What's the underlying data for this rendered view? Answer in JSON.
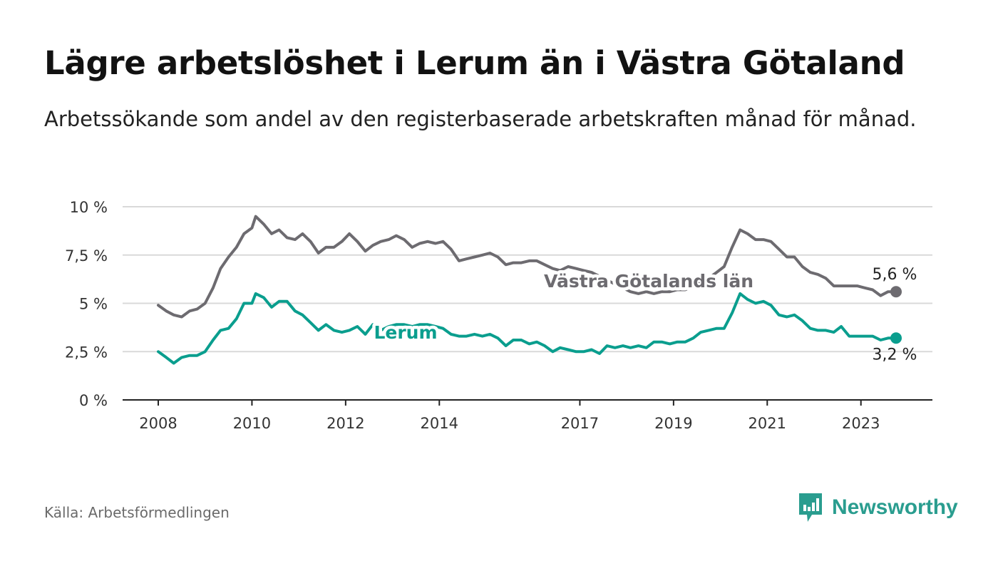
{
  "header": {
    "title": "Lägre arbetslöshet i Lerum än i Västra Götaland",
    "subtitle": "Arbetssökande som andel av den registerbaserade arbetskraften månad för månad."
  },
  "footer": {
    "source": "Källa: Arbetsförmedlingen",
    "brand": "Newsworthy"
  },
  "colors": {
    "lerum": "#0a9e8e",
    "vg": "#6d6b70",
    "grid": "#d9d9d9",
    "brand": "#2a9d8f"
  },
  "chart_data": {
    "type": "line",
    "title": "Lägre arbetslöshet i Lerum än i Västra Götaland",
    "xlabel": "",
    "ylabel": "",
    "xlim": [
      2008,
      2024
    ],
    "ylim": [
      0,
      10
    ],
    "y_ticks": [
      0,
      2.5,
      5,
      7.5,
      10
    ],
    "y_tick_labels": [
      "0 %",
      "2,5 %",
      "5 %",
      "7,5 %",
      "10 %"
    ],
    "x_ticks": [
      2008,
      2010,
      2012,
      2014,
      2017,
      2019,
      2021,
      2023
    ],
    "x_tick_labels": [
      "2008",
      "2010",
      "2012",
      "2014",
      "2017",
      "2019",
      "2021",
      "2023"
    ],
    "grid": true,
    "series": [
      {
        "name": "Västra Götalands län",
        "color": "#6d6b70",
        "end_label": "5,6 %",
        "points": [
          [
            2008.0,
            4.9
          ],
          [
            2008.17,
            4.6
          ],
          [
            2008.33,
            4.4
          ],
          [
            2008.5,
            4.3
          ],
          [
            2008.67,
            4.6
          ],
          [
            2008.83,
            4.7
          ],
          [
            2009.0,
            5.0
          ],
          [
            2009.17,
            5.8
          ],
          [
            2009.33,
            6.8
          ],
          [
            2009.5,
            7.4
          ],
          [
            2009.67,
            7.9
          ],
          [
            2009.83,
            8.6
          ],
          [
            2010.0,
            8.9
          ],
          [
            2010.08,
            9.5
          ],
          [
            2010.25,
            9.1
          ],
          [
            2010.42,
            8.6
          ],
          [
            2010.58,
            8.8
          ],
          [
            2010.75,
            8.4
          ],
          [
            2010.92,
            8.3
          ],
          [
            2011.08,
            8.6
          ],
          [
            2011.25,
            8.2
          ],
          [
            2011.42,
            7.6
          ],
          [
            2011.58,
            7.9
          ],
          [
            2011.75,
            7.9
          ],
          [
            2011.92,
            8.2
          ],
          [
            2012.08,
            8.6
          ],
          [
            2012.25,
            8.2
          ],
          [
            2012.42,
            7.7
          ],
          [
            2012.58,
            8.0
          ],
          [
            2012.75,
            8.2
          ],
          [
            2012.92,
            8.3
          ],
          [
            2013.08,
            8.5
          ],
          [
            2013.25,
            8.3
          ],
          [
            2013.42,
            7.9
          ],
          [
            2013.58,
            8.1
          ],
          [
            2013.75,
            8.2
          ],
          [
            2013.92,
            8.1
          ],
          [
            2014.08,
            8.2
          ],
          [
            2014.25,
            7.8
          ],
          [
            2014.42,
            7.2
          ],
          [
            2014.58,
            7.3
          ],
          [
            2014.75,
            7.4
          ],
          [
            2014.92,
            7.5
          ],
          [
            2015.08,
            7.6
          ],
          [
            2015.25,
            7.4
          ],
          [
            2015.42,
            7.0
          ],
          [
            2015.58,
            7.1
          ],
          [
            2015.75,
            7.1
          ],
          [
            2015.92,
            7.2
          ],
          [
            2016.08,
            7.2
          ],
          [
            2016.25,
            7.0
          ],
          [
            2016.42,
            6.8
          ],
          [
            2016.58,
            6.7
          ],
          [
            2016.75,
            6.9
          ],
          [
            2016.92,
            6.8
          ],
          [
            2017.08,
            6.7
          ],
          [
            2017.25,
            6.6
          ],
          [
            2017.42,
            6.4
          ],
          [
            2017.58,
            6.2
          ],
          [
            2017.75,
            6.0
          ],
          [
            2017.92,
            5.8
          ],
          [
            2018.08,
            5.6
          ],
          [
            2018.25,
            5.5
          ],
          [
            2018.42,
            5.6
          ],
          [
            2018.58,
            5.5
          ],
          [
            2018.75,
            5.6
          ],
          [
            2018.92,
            5.6
          ],
          [
            2019.08,
            5.7
          ],
          [
            2019.25,
            5.7
          ],
          [
            2019.42,
            5.9
          ],
          [
            2019.58,
            6.1
          ],
          [
            2019.75,
            6.3
          ],
          [
            2019.92,
            6.6
          ],
          [
            2020.08,
            6.9
          ],
          [
            2020.25,
            7.9
          ],
          [
            2020.42,
            8.8
          ],
          [
            2020.58,
            8.6
          ],
          [
            2020.75,
            8.3
          ],
          [
            2020.92,
            8.3
          ],
          [
            2021.08,
            8.2
          ],
          [
            2021.25,
            7.8
          ],
          [
            2021.42,
            7.4
          ],
          [
            2021.58,
            7.4
          ],
          [
            2021.75,
            6.9
          ],
          [
            2021.92,
            6.6
          ],
          [
            2022.08,
            6.5
          ],
          [
            2022.25,
            6.3
          ],
          [
            2022.42,
            5.9
          ],
          [
            2022.58,
            5.9
          ],
          [
            2022.75,
            5.9
          ],
          [
            2022.92,
            5.9
          ],
          [
            2023.08,
            5.8
          ],
          [
            2023.25,
            5.7
          ],
          [
            2023.42,
            5.4
          ],
          [
            2023.58,
            5.6
          ],
          [
            2023.75,
            5.6
          ]
        ]
      },
      {
        "name": "Lerum",
        "color": "#0a9e8e",
        "end_label": "3,2 %",
        "points": [
          [
            2008.0,
            2.5
          ],
          [
            2008.17,
            2.2
          ],
          [
            2008.33,
            1.9
          ],
          [
            2008.5,
            2.2
          ],
          [
            2008.67,
            2.3
          ],
          [
            2008.83,
            2.3
          ],
          [
            2009.0,
            2.5
          ],
          [
            2009.17,
            3.1
          ],
          [
            2009.33,
            3.6
          ],
          [
            2009.5,
            3.7
          ],
          [
            2009.67,
            4.2
          ],
          [
            2009.83,
            5.0
          ],
          [
            2010.0,
            5.0
          ],
          [
            2010.08,
            5.5
          ],
          [
            2010.25,
            5.3
          ],
          [
            2010.42,
            4.8
          ],
          [
            2010.58,
            5.1
          ],
          [
            2010.75,
            5.1
          ],
          [
            2010.92,
            4.6
          ],
          [
            2011.08,
            4.4
          ],
          [
            2011.25,
            4.0
          ],
          [
            2011.42,
            3.6
          ],
          [
            2011.58,
            3.9
          ],
          [
            2011.75,
            3.6
          ],
          [
            2011.92,
            3.5
          ],
          [
            2012.08,
            3.6
          ],
          [
            2012.25,
            3.8
          ],
          [
            2012.42,
            3.4
          ],
          [
            2012.58,
            3.9
          ],
          [
            2012.75,
            3.6
          ],
          [
            2012.92,
            3.8
          ],
          [
            2013.08,
            3.9
          ],
          [
            2013.25,
            3.9
          ],
          [
            2013.42,
            3.8
          ],
          [
            2013.58,
            3.9
          ],
          [
            2013.75,
            3.9
          ],
          [
            2013.92,
            3.8
          ],
          [
            2014.08,
            3.7
          ],
          [
            2014.25,
            3.4
          ],
          [
            2014.42,
            3.3
          ],
          [
            2014.58,
            3.3
          ],
          [
            2014.75,
            3.4
          ],
          [
            2014.92,
            3.3
          ],
          [
            2015.08,
            3.4
          ],
          [
            2015.25,
            3.2
          ],
          [
            2015.42,
            2.8
          ],
          [
            2015.58,
            3.1
          ],
          [
            2015.75,
            3.1
          ],
          [
            2015.92,
            2.9
          ],
          [
            2016.08,
            3.0
          ],
          [
            2016.25,
            2.8
          ],
          [
            2016.42,
            2.5
          ],
          [
            2016.58,
            2.7
          ],
          [
            2016.75,
            2.6
          ],
          [
            2016.92,
            2.5
          ],
          [
            2017.08,
            2.5
          ],
          [
            2017.25,
            2.6
          ],
          [
            2017.42,
            2.4
          ],
          [
            2017.58,
            2.8
          ],
          [
            2017.75,
            2.7
          ],
          [
            2017.92,
            2.8
          ],
          [
            2018.08,
            2.7
          ],
          [
            2018.25,
            2.8
          ],
          [
            2018.42,
            2.7
          ],
          [
            2018.58,
            3.0
          ],
          [
            2018.75,
            3.0
          ],
          [
            2018.92,
            2.9
          ],
          [
            2019.08,
            3.0
          ],
          [
            2019.25,
            3.0
          ],
          [
            2019.42,
            3.2
          ],
          [
            2019.58,
            3.5
          ],
          [
            2019.75,
            3.6
          ],
          [
            2019.92,
            3.7
          ],
          [
            2020.08,
            3.7
          ],
          [
            2020.25,
            4.5
          ],
          [
            2020.42,
            5.5
          ],
          [
            2020.58,
            5.2
          ],
          [
            2020.75,
            5.0
          ],
          [
            2020.92,
            5.1
          ],
          [
            2021.08,
            4.9
          ],
          [
            2021.25,
            4.4
          ],
          [
            2021.42,
            4.3
          ],
          [
            2021.58,
            4.4
          ],
          [
            2021.75,
            4.1
          ],
          [
            2021.92,
            3.7
          ],
          [
            2022.08,
            3.6
          ],
          [
            2022.25,
            3.6
          ],
          [
            2022.42,
            3.5
          ],
          [
            2022.58,
            3.8
          ],
          [
            2022.75,
            3.3
          ],
          [
            2022.92,
            3.3
          ],
          [
            2023.08,
            3.3
          ],
          [
            2023.25,
            3.3
          ],
          [
            2023.42,
            3.1
          ],
          [
            2023.58,
            3.2
          ],
          [
            2023.75,
            3.2
          ]
        ]
      }
    ],
    "series_labels": [
      {
        "series": "Västra Götalands län",
        "text": "Västra Götalands län"
      },
      {
        "series": "Lerum",
        "text": "Lerum"
      }
    ]
  }
}
